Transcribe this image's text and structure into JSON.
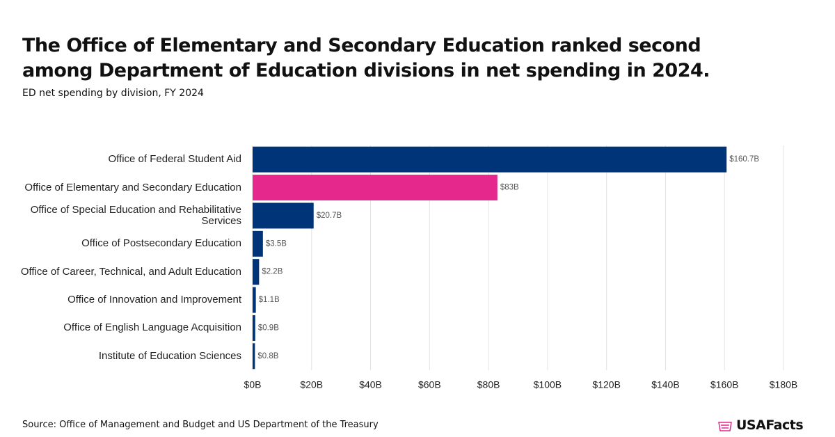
{
  "chart_data": {
    "type": "barh",
    "title": "The Office of Elementary and Secondary Education ranked second among Department of Education divisions in net spending in 2024.",
    "subtitle": "ED net spending by division, FY 2024",
    "source": "Source: Office of Management and Budget and US Department of the Treasury",
    "brand": "USAFacts",
    "categories": [
      "Office of Federal Student Aid",
      "Office of Elementary and Secondary Education",
      "Office of Special Education and Rehabilitative Services",
      "Office of Postsecondary Education",
      "Office of Career, Technical, and Adult Education",
      "Office of Innovation and Improvement",
      "Office of English Language Acquisition",
      "Institute of Education Sciences"
    ],
    "values": [
      160.7,
      83,
      20.7,
      3.5,
      2.2,
      1.1,
      0.9,
      0.8
    ],
    "value_labels": [
      "$160.7B",
      "$83B",
      "$20.7B",
      "$3.5B",
      "$2.2B",
      "$1.1B",
      "$0.9B",
      "$0.8B"
    ],
    "colors": [
      "#003478",
      "#e4288c",
      "#003478",
      "#003478",
      "#003478",
      "#003478",
      "#003478",
      "#003478"
    ],
    "xlim": [
      0,
      180
    ],
    "xticks": [
      {
        "value": 0,
        "label": "$0B"
      },
      {
        "value": 20,
        "label": "$20B"
      },
      {
        "value": 40,
        "label": "$40B"
      },
      {
        "value": 60,
        "label": "$60B"
      },
      {
        "value": 80,
        "label": "$80B"
      },
      {
        "value": 100,
        "label": "$100B"
      },
      {
        "value": 120,
        "label": "$120B"
      },
      {
        "value": 140,
        "label": "$140B"
      },
      {
        "value": 160,
        "label": "$160B"
      },
      {
        "value": 180,
        "label": "$180B"
      }
    ],
    "grid": true
  }
}
